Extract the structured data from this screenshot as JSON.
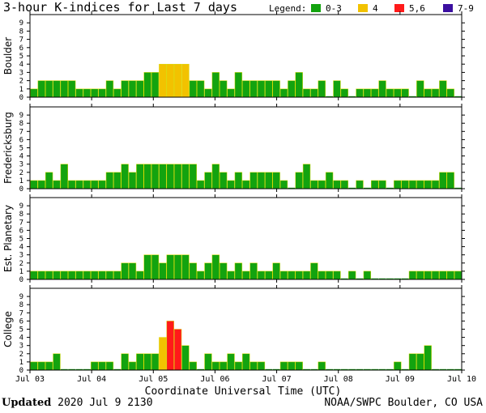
{
  "title": "3-hour K-indices for Last 7 days",
  "legend": {
    "label": "Legend:",
    "items": [
      {
        "label": "0-3",
        "color": "#13a30f"
      },
      {
        "label": "4",
        "color": "#f2c200"
      },
      {
        "label": "5,6",
        "color": "#ff1a1a"
      },
      {
        "label": "7-9",
        "color": "#3b0fa0"
      }
    ]
  },
  "footer": {
    "updated_label": "Updated",
    "updated_value": "2020 Jul  9 2130",
    "source": "NOAA/SWPC Boulder, CO USA"
  },
  "chart_data": {
    "type": "bar",
    "title": "3-hour K-indices for Last 7 days",
    "xlabel": "Coordinate Universal Time (UTC)",
    "x_ticks": [
      "Jul 03",
      "Jul 04",
      "Jul 05",
      "Jul 06",
      "Jul 07",
      "Jul 08",
      "Jul 09",
      "Jul 10"
    ],
    "ylim": [
      0,
      9
    ],
    "y_ticks": [
      0,
      1,
      2,
      3,
      4,
      5,
      6,
      7,
      8,
      9
    ],
    "panels": [
      {
        "name": "Boulder",
        "values": [
          1,
          2,
          2,
          2,
          2,
          2,
          1,
          1,
          1,
          1,
          2,
          1,
          2,
          2,
          2,
          3,
          3,
          4,
          4,
          4,
          4,
          2,
          2,
          1,
          3,
          2,
          1,
          3,
          2,
          2,
          2,
          2,
          2,
          1,
          2,
          3,
          1,
          1,
          2,
          0,
          2,
          1,
          0,
          1,
          1,
          1,
          2,
          1,
          1,
          1,
          0,
          2,
          1,
          1,
          2,
          1,
          0
        ]
      },
      {
        "name": "Fredericksburg",
        "values": [
          1,
          1,
          2,
          1,
          3,
          1,
          1,
          1,
          1,
          1,
          2,
          2,
          3,
          2,
          3,
          3,
          3,
          3,
          3,
          3,
          3,
          3,
          1,
          2,
          3,
          2,
          1,
          2,
          1,
          2,
          2,
          2,
          2,
          1,
          0,
          2,
          3,
          1,
          1,
          2,
          1,
          1,
          0,
          1,
          0,
          1,
          1,
          0,
          1,
          1,
          1,
          1,
          1,
          1,
          2,
          2,
          0
        ]
      },
      {
        "name": "Est. Planetary",
        "values": [
          1,
          1,
          1,
          1,
          1,
          1,
          1,
          1,
          1,
          1,
          1,
          1,
          2,
          2,
          1,
          3,
          3,
          2,
          3,
          3,
          3,
          2,
          1,
          2,
          3,
          2,
          1,
          2,
          1,
          2,
          1,
          1,
          2,
          1,
          1,
          1,
          1,
          2,
          1,
          1,
          1,
          0,
          1,
          0,
          1,
          0,
          0,
          0,
          0,
          0,
          1,
          1,
          1,
          1,
          1,
          1,
          1
        ]
      },
      {
        "name": "College",
        "values": [
          1,
          1,
          1,
          2,
          0,
          0,
          0,
          0,
          1,
          1,
          1,
          0,
          2,
          1,
          2,
          2,
          2,
          4,
          6,
          5,
          3,
          1,
          0,
          2,
          1,
          1,
          2,
          1,
          2,
          1,
          1,
          0,
          0,
          1,
          1,
          1,
          0,
          0,
          1,
          0,
          0,
          0,
          0,
          0,
          0,
          0,
          0,
          0,
          1,
          0,
          2,
          2,
          3,
          0,
          0,
          0,
          0
        ]
      }
    ]
  }
}
